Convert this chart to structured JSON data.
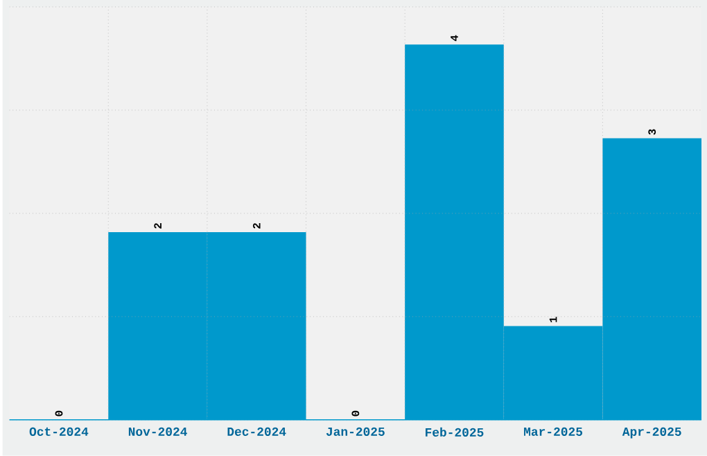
{
  "chart_data": {
    "type": "bar",
    "categories": [
      "Oct-2024",
      "Nov-2024",
      "Dec-2024",
      "Jan-2025",
      "Feb-2025",
      "Mar-2025",
      "Apr-2025"
    ],
    "values": [
      0,
      2,
      2,
      0,
      4,
      1,
      3
    ],
    "color": "#0099cc",
    "ylim": [
      0,
      4.4
    ],
    "yticks": [
      {
        "value": 0,
        "label": null
      },
      {
        "value": 1.1,
        "label": null
      },
      {
        "value": 2.2,
        "label": null
      },
      {
        "value": 3.3,
        "label": null
      },
      {
        "value": 4.4,
        "label": null
      }
    ],
    "tick_labels": "x",
    "grid": true,
    "data_labels": true
  }
}
